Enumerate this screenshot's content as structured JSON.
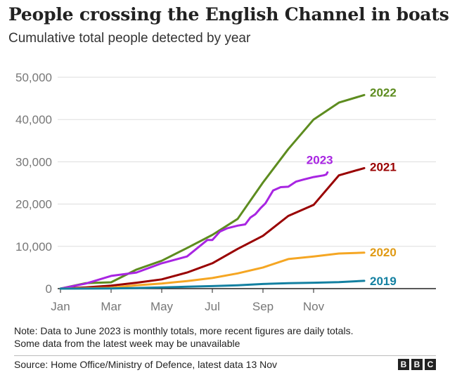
{
  "header": {
    "title": "People crossing the English Channel in boats",
    "subtitle": "Cumulative total people detected by year"
  },
  "chart_data": {
    "type": "line",
    "title": "People crossing the English Channel in boats",
    "subtitle": "Cumulative total people detected by year",
    "xlabel": "",
    "ylabel": "",
    "x_axis": {
      "min_month": 0,
      "max_month": 12,
      "ticks": [
        "Jan",
        "Mar",
        "May",
        "Jul",
        "Sep",
        "Nov"
      ]
    },
    "y_axis": {
      "min": 0,
      "max": 50000,
      "ticks": [
        "0",
        "10,000",
        "20,000",
        "30,000",
        "40,000",
        "50,000"
      ]
    },
    "grid": "horizontal",
    "legend": "inline-labels-at-line-ends",
    "series": [
      {
        "name": "2022",
        "color": "#5d8c1f",
        "label_color": "#5d8c1f",
        "points": [
          [
            0,
            0
          ],
          [
            1,
            1300
          ],
          [
            2,
            1500
          ],
          [
            3,
            4500
          ],
          [
            4,
            6600
          ],
          [
            5,
            9600
          ],
          [
            6,
            12700
          ],
          [
            7,
            16500
          ],
          [
            8,
            25100
          ],
          [
            9,
            33000
          ],
          [
            10,
            40000
          ],
          [
            11,
            44000
          ],
          [
            12,
            45800
          ]
        ]
      },
      {
        "name": "2021",
        "color": "#990000",
        "label_color": "#990000",
        "points": [
          [
            0,
            0
          ],
          [
            1,
            300
          ],
          [
            2,
            700
          ],
          [
            3,
            1400
          ],
          [
            4,
            2200
          ],
          [
            5,
            3800
          ],
          [
            6,
            6000
          ],
          [
            7,
            9400
          ],
          [
            8,
            12500
          ],
          [
            9,
            17200
          ],
          [
            10,
            19800
          ],
          [
            11,
            26800
          ],
          [
            12,
            28500
          ]
        ]
      },
      {
        "name": "2023",
        "color": "#a825e2",
        "label_color": "#a825e2",
        "points": [
          [
            0,
            0
          ],
          [
            1,
            1200
          ],
          [
            2,
            3000
          ],
          [
            3,
            3800
          ],
          [
            4,
            6000
          ],
          [
            5,
            7600
          ],
          [
            5.8,
            11500
          ],
          [
            6,
            11500
          ],
          [
            6.3,
            13500
          ],
          [
            6.6,
            14300
          ],
          [
            7,
            14900
          ],
          [
            7.3,
            15200
          ],
          [
            7.5,
            16800
          ],
          [
            7.7,
            17600
          ],
          [
            7.9,
            19000
          ],
          [
            8.1,
            20200
          ],
          [
            8.4,
            23200
          ],
          [
            8.7,
            24000
          ],
          [
            9,
            24100
          ],
          [
            9.3,
            25300
          ],
          [
            9.6,
            25800
          ],
          [
            10,
            26400
          ],
          [
            10.4,
            26800
          ],
          [
            10.5,
            27000
          ],
          [
            10.55,
            27500
          ]
        ]
      },
      {
        "name": "2020",
        "color": "#f5a623",
        "label_color": "#e09a14",
        "points": [
          [
            0,
            0
          ],
          [
            1,
            100
          ],
          [
            2,
            200
          ],
          [
            3,
            800
          ],
          [
            4,
            1200
          ],
          [
            5,
            1800
          ],
          [
            6,
            2500
          ],
          [
            7,
            3600
          ],
          [
            8,
            5000
          ],
          [
            9,
            7000
          ],
          [
            10,
            7600
          ],
          [
            11,
            8300
          ],
          [
            12,
            8500
          ]
        ]
      },
      {
        "name": "2019",
        "color": "#1380a1",
        "label_color": "#1380a1",
        "points": [
          [
            0,
            0
          ],
          [
            2,
            50
          ],
          [
            3,
            150
          ],
          [
            4,
            300
          ],
          [
            5,
            450
          ],
          [
            6,
            600
          ],
          [
            7,
            800
          ],
          [
            8,
            1100
          ],
          [
            9,
            1300
          ],
          [
            10,
            1400
          ],
          [
            11,
            1550
          ],
          [
            12,
            1850
          ]
        ]
      }
    ]
  },
  "footer": {
    "note_line1": "Note: Data to June 2023 is monthly totals, more recent figures are daily totals.",
    "note_line2": "Some data from the latest week may be unavailable",
    "source": "Source: Home Office/Ministry of Defence, latest data 13 Nov",
    "logo_letters": [
      "B",
      "B",
      "C"
    ]
  }
}
